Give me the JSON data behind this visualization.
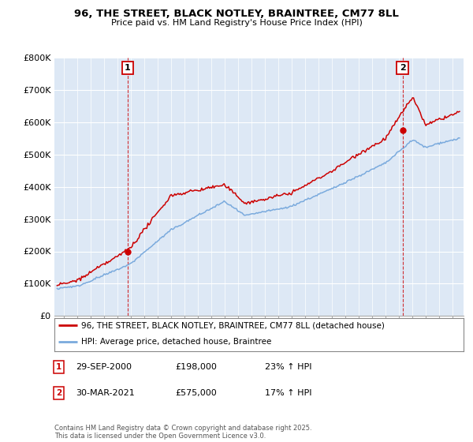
{
  "title": "96, THE STREET, BLACK NOTLEY, BRAINTREE, CM77 8LL",
  "subtitle": "Price paid vs. HM Land Registry's House Price Index (HPI)",
  "ylim": [
    0,
    800000
  ],
  "ytick_labels": [
    "£0",
    "£100K",
    "£200K",
    "£300K",
    "£400K",
    "£500K",
    "£600K",
    "£700K",
    "£800K"
  ],
  "ytick_values": [
    0,
    100000,
    200000,
    300000,
    400000,
    500000,
    600000,
    700000,
    800000
  ],
  "legend_label_red": "96, THE STREET, BLACK NOTLEY, BRAINTREE, CM77 8LL (detached house)",
  "legend_label_blue": "HPI: Average price, detached house, Braintree",
  "annotation1_date": "29-SEP-2000",
  "annotation1_price": "£198,000",
  "annotation1_hpi": "23% ↑ HPI",
  "annotation2_date": "30-MAR-2021",
  "annotation2_price": "£575,000",
  "annotation2_hpi": "17% ↑ HPI",
  "footer": "Contains HM Land Registry data © Crown copyright and database right 2025.\nThis data is licensed under the Open Government Licence v3.0.",
  "red_color": "#cc0000",
  "blue_color": "#7aaadd",
  "plot_bg_color": "#dde8f5",
  "background_color": "#ffffff",
  "grid_color": "#ffffff",
  "sale1_year": 2000.75,
  "sale1_price": 198000,
  "sale2_year": 2021.25,
  "sale2_price": 575000
}
